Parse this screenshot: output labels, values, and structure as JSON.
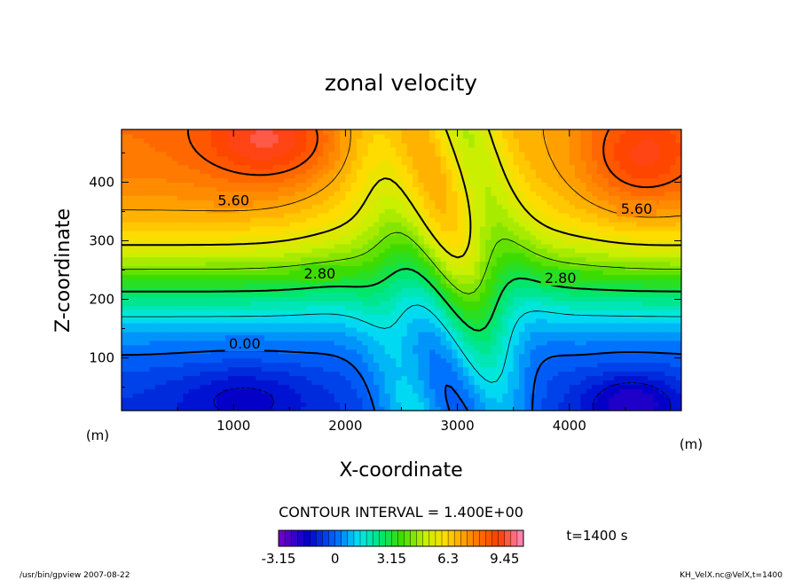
{
  "chart_data": {
    "type": "heatmap",
    "title": "zonal velocity",
    "xlabel": "X-coordinate",
    "ylabel": "Z-coordinate",
    "x_unit": "(m)",
    "y_unit": "(m)",
    "xlim": [
      0,
      5000
    ],
    "ylim": [
      10,
      490
    ],
    "x_ticks": [
      1000,
      2000,
      3000,
      4000
    ],
    "y_ticks": [
      100,
      200,
      300,
      400
    ],
    "contour_interval_label": "CONTOUR INTERVAL = 1.400E+00",
    "contour_labels": [
      {
        "text": "5.60",
        "x": 1000,
        "z": 370
      },
      {
        "text": "5.60",
        "x": 4600,
        "z": 355
      },
      {
        "text": "2.80",
        "x": 1770,
        "z": 245
      },
      {
        "text": "2.80",
        "x": 3920,
        "z": 237
      },
      {
        "text": "0.00",
        "x": 1100,
        "z": 125
      }
    ],
    "colorbar": {
      "min": -3.15,
      "max": 10.5,
      "step": 0.35,
      "tick_labels": [
        "-3.15",
        "0",
        "3.15",
        "6.3",
        "9.45"
      ],
      "tick_values": [
        -3.15,
        0,
        3.15,
        6.3,
        9.45
      ]
    },
    "time_label": "t=1400 s",
    "footer_left": "/usr/bin/gpview  2007-08-22",
    "footer_right": "KH_VelX.nc@VelX,t=1400"
  }
}
